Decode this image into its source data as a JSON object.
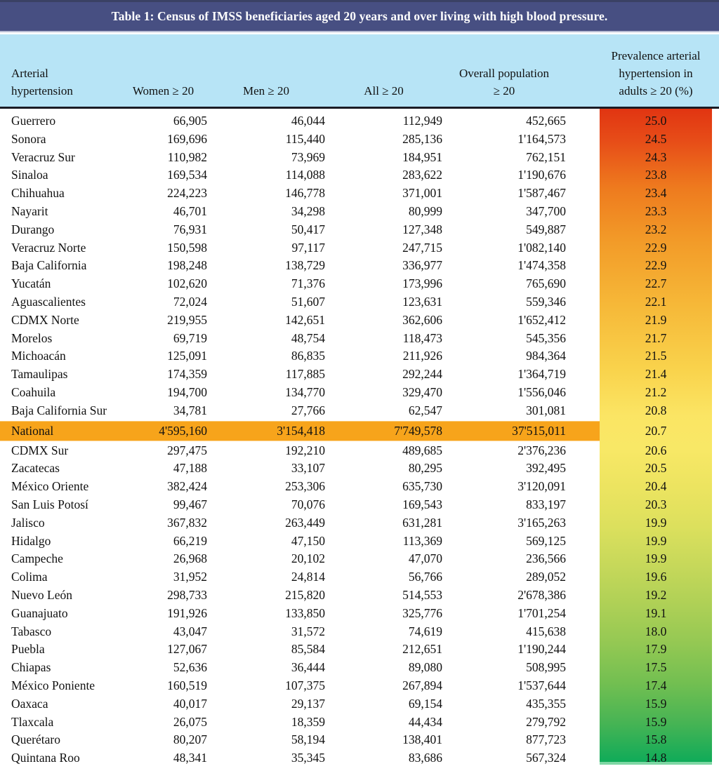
{
  "title": "Table 1: Census of IMSS beneficiaries aged 20 years and over living with high blood pressure.",
  "header": {
    "state": [
      "Arterial",
      "hypertension"
    ],
    "women": "Women ≥ 20",
    "men": "Men ≥ 20",
    "all": "All ≥ 20",
    "overall": [
      "Overall population",
      "≥ 20"
    ],
    "prevalence": [
      "Prevalence arterial",
      "hypertension in",
      "adults ≥ 20 (%)"
    ]
  },
  "colors": {
    "title_bar": "#474f82",
    "title_bar_top": "#3a4164",
    "header_band": "#b7e4f6",
    "header_rule": "#1b1b24",
    "national_row": "#f7a41b",
    "prevalence_gradient": [
      {
        "stop": 0,
        "color": "#e13512"
      },
      {
        "stop": 5,
        "color": "#e74d18"
      },
      {
        "stop": 12,
        "color": "#ee7a1e"
      },
      {
        "stop": 20,
        "color": "#f29a28"
      },
      {
        "stop": 30,
        "color": "#f6b838"
      },
      {
        "stop": 40,
        "color": "#f9d34c"
      },
      {
        "stop": 47,
        "color": "#fbe564"
      },
      {
        "stop": 52,
        "color": "#f8e866"
      },
      {
        "stop": 58,
        "color": "#ece460"
      },
      {
        "stop": 64,
        "color": "#dce05d"
      },
      {
        "stop": 70,
        "color": "#c6d85a"
      },
      {
        "stop": 76,
        "color": "#aed056"
      },
      {
        "stop": 82,
        "color": "#93c853"
      },
      {
        "stop": 88,
        "color": "#72bf51"
      },
      {
        "stop": 94,
        "color": "#47b454"
      },
      {
        "stop": 100,
        "color": "#10ab59"
      }
    ]
  },
  "table": {
    "rows": [
      {
        "state": "Guerrero",
        "women": "66,905",
        "men": "46,044",
        "all": "112,949",
        "overall": "452,665",
        "prevalence": "25.0"
      },
      {
        "state": "Sonora",
        "women": "169,696",
        "men": "115,440",
        "all": "285,136",
        "overall": "1'164,573",
        "prevalence": "24.5"
      },
      {
        "state": "Veracruz Sur",
        "women": "110,982",
        "men": "73,969",
        "all": "184,951",
        "overall": "762,151",
        "prevalence": "24.3"
      },
      {
        "state": "Sinaloa",
        "women": "169,534",
        "men": "114,088",
        "all": "283,622",
        "overall": "1'190,676",
        "prevalence": "23.8"
      },
      {
        "state": "Chihuahua",
        "women": "224,223",
        "men": "146,778",
        "all": "371,001",
        "overall": "1'587,467",
        "prevalence": "23.4"
      },
      {
        "state": "Nayarit",
        "women": "46,701",
        "men": "34,298",
        "all": "80,999",
        "overall": "347,700",
        "prevalence": "23.3"
      },
      {
        "state": "Durango",
        "women": "76,931",
        "men": "50,417",
        "all": "127,348",
        "overall": "549,887",
        "prevalence": "23.2"
      },
      {
        "state": "Veracruz Norte",
        "women": "150,598",
        "men": "97,117",
        "all": "247,715",
        "overall": "1'082,140",
        "prevalence": "22.9"
      },
      {
        "state": "Baja California",
        "women": "198,248",
        "men": "138,729",
        "all": "336,977",
        "overall": "1'474,358",
        "prevalence": "22.9"
      },
      {
        "state": "Yucatán",
        "women": "102,620",
        "men": "71,376",
        "all": "173,996",
        "overall": "765,690",
        "prevalence": "22.7"
      },
      {
        "state": "Aguascalientes",
        "women": "72,024",
        "men": "51,607",
        "all": "123,631",
        "overall": "559,346",
        "prevalence": "22.1"
      },
      {
        "state": "CDMX Norte",
        "women": "219,955",
        "men": "142,651",
        "all": "362,606",
        "overall": "1'652,412",
        "prevalence": "21.9"
      },
      {
        "state": "Morelos",
        "women": "69,719",
        "men": "48,754",
        "all": "118,473",
        "overall": "545,356",
        "prevalence": "21.7"
      },
      {
        "state": "Michoacán",
        "women": "125,091",
        "men": "86,835",
        "all": "211,926",
        "overall": "984,364",
        "prevalence": "21.5"
      },
      {
        "state": "Tamaulipas",
        "women": "174,359",
        "men": "117,885",
        "all": "292,244",
        "overall": "1'364,719",
        "prevalence": "21.4"
      },
      {
        "state": "Coahuila",
        "women": "194,700",
        "men": "134,770",
        "all": "329,470",
        "overall": "1'556,046",
        "prevalence": "21.2"
      },
      {
        "state": "Baja California Sur",
        "women": "34,781",
        "men": "27,766",
        "all": "62,547",
        "overall": "301,081",
        "prevalence": "20.8"
      },
      {
        "state": "National",
        "women": "4'595,160",
        "men": "3'154,418",
        "all": "7'749,578",
        "overall": "37'515,011",
        "prevalence": "20.7",
        "national": true
      },
      {
        "state": "CDMX Sur",
        "women": "297,475",
        "men": "192,210",
        "all": "489,685",
        "overall": "2'376,236",
        "prevalence": "20.6"
      },
      {
        "state": "Zacatecas",
        "women": "47,188",
        "men": "33,107",
        "all": "80,295",
        "overall": "392,495",
        "prevalence": "20.5"
      },
      {
        "state": "México Oriente",
        "women": "382,424",
        "men": "253,306",
        "all": "635,730",
        "overall": "3'120,091",
        "prevalence": "20.4"
      },
      {
        "state": "San Luis Potosí",
        "women": "99,467",
        "men": "70,076",
        "all": "169,543",
        "overall": "833,197",
        "prevalence": "20.3"
      },
      {
        "state": "Jalisco",
        "women": "367,832",
        "men": "263,449",
        "all": "631,281",
        "overall": "3'165,263",
        "prevalence": "19.9"
      },
      {
        "state": "Hidalgo",
        "women": "66,219",
        "men": "47,150",
        "all": "113,369",
        "overall": "569,125",
        "prevalence": "19.9"
      },
      {
        "state": "Campeche",
        "women": "26,968",
        "men": "20,102",
        "all": "47,070",
        "overall": "236,566",
        "prevalence": "19.9"
      },
      {
        "state": "Colima",
        "women": "31,952",
        "men": "24,814",
        "all": "56,766",
        "overall": "289,052",
        "prevalence": "19.6"
      },
      {
        "state": "Nuevo León",
        "women": "298,733",
        "men": "215,820",
        "all": "514,553",
        "overall": "2'678,386",
        "prevalence": "19.2"
      },
      {
        "state": "Guanajuato",
        "women": "191,926",
        "men": "133,850",
        "all": "325,776",
        "overall": "1'701,254",
        "prevalence": "19.1"
      },
      {
        "state": "Tabasco",
        "women": "43,047",
        "men": "31,572",
        "all": "74,619",
        "overall": "415,638",
        "prevalence": "18.0"
      },
      {
        "state": "Puebla",
        "women": "127,067",
        "men": "85,584",
        "all": "212,651",
        "overall": "1'190,244",
        "prevalence": "17.9"
      },
      {
        "state": "Chiapas",
        "women": "52,636",
        "men": "36,444",
        "all": "89,080",
        "overall": "508,995",
        "prevalence": "17.5"
      },
      {
        "state": "México Poniente",
        "women": "160,519",
        "men": "107,375",
        "all": "267,894",
        "overall": "1'537,644",
        "prevalence": "17.4"
      },
      {
        "state": "Oaxaca",
        "women": "40,017",
        "men": "29,137",
        "all": "69,154",
        "overall": "435,355",
        "prevalence": "15.9"
      },
      {
        "state": "Tlaxcala",
        "women": "26,075",
        "men": "18,359",
        "all": "44,434",
        "overall": "279,792",
        "prevalence": "15.9"
      },
      {
        "state": "Querétaro",
        "women": "80,207",
        "men": "58,194",
        "all": "138,401",
        "overall": "877,723",
        "prevalence": "15.8"
      },
      {
        "state": "Quintana Roo",
        "women": "48,341",
        "men": "35,345",
        "all": "83,686",
        "overall": "567,324",
        "prevalence": "14.8"
      }
    ]
  }
}
